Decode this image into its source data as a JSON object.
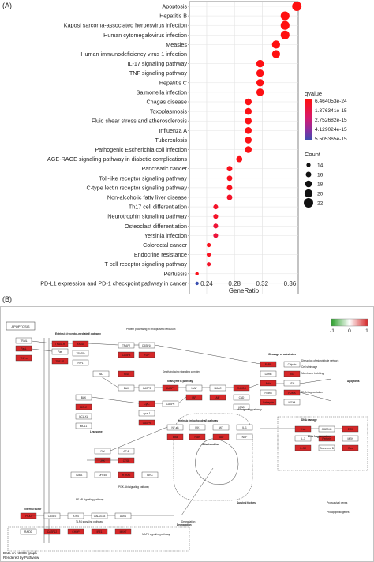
{
  "panel_a_label": "(A)",
  "panel_b_label": "(B)",
  "chart_data": {
    "type": "scatter",
    "subtype": "dot-plot",
    "xlabel": "GeneRatio",
    "ylabel": "",
    "xlim": [
      0.215,
      0.372
    ],
    "x_ticks": [
      0.24,
      0.28,
      0.32,
      0.36
    ],
    "x_tick_labels": [
      "0.24",
      "0.28",
      "0.32",
      "0.36"
    ],
    "grid": true,
    "legend_position": "right",
    "categories": [
      "Apoptosis",
      "Hepatitis B",
      "Kaposi sarcoma-associated herpesvirus infection",
      "Human cytomegalovirus infection",
      "Measles",
      "Human immunodeficiency virus 1 infection",
      "IL-17 signaling pathway",
      "TNF signaling pathway",
      "Hepatitis C",
      "Salmonella infection",
      "Chagas disease",
      "Toxoplasmosis",
      "Fluid shear stress and atherosclerosis",
      "Influenza A",
      "Tuberculosis",
      "Pathogenic Escherichia coli infection",
      "AGE-RAGE signaling pathway in diabetic complications",
      "Pancreatic cancer",
      "Toll-like receptor signaling pathway",
      "C-type lectin receptor signaling pathway",
      "Non-alcoholic fatty liver disease",
      "Th17 cell differentiation",
      "Neurotrophin signaling pathway",
      "Osteoclast differentiation",
      "Yersinia infection",
      "Colorectal cancer",
      "Endocrine resistance",
      "T cell receptor signaling pathway",
      "Pertussis",
      "PD-L1 expression and PD-1 checkpoint pathway in cancer"
    ],
    "gene_ratio": [
      0.37,
      0.353,
      0.353,
      0.353,
      0.34,
      0.34,
      0.317,
      0.317,
      0.317,
      0.317,
      0.3,
      0.3,
      0.3,
      0.3,
      0.3,
      0.3,
      0.287,
      0.273,
      0.273,
      0.273,
      0.273,
      0.253,
      0.253,
      0.253,
      0.253,
      0.243,
      0.243,
      0.243,
      0.226,
      0.226
    ],
    "count": [
      22,
      21,
      21,
      21,
      20,
      20,
      19,
      19,
      19,
      19,
      18,
      18,
      18,
      18,
      18,
      18,
      17,
      16,
      16,
      16,
      16,
      15,
      15,
      15,
      15,
      14,
      14,
      14,
      13,
      13
    ],
    "color_class": [
      0.0,
      0.0,
      0.0,
      0.0,
      0.0,
      0.0,
      0.02,
      0.02,
      0.02,
      0.02,
      0.03,
      0.03,
      0.03,
      0.03,
      0.03,
      0.03,
      0.04,
      0.06,
      0.06,
      0.06,
      0.12,
      0.12,
      0.12,
      0.18,
      0.2,
      0.06,
      0.08,
      0.12,
      0.05,
      1.0
    ],
    "qvalue_legend": {
      "title": "qvalue",
      "labels": [
        "6.464053e-24",
        "1.376341e-15",
        "2.752682e-15",
        "4.129024e-15",
        "5.505365e-15"
      ],
      "color_low": "#e8112e",
      "color_high": "#3a4fb0"
    },
    "count_legend": {
      "title": "Count",
      "labels": [
        "14",
        "16",
        "18",
        "20",
        "22"
      ],
      "values": [
        14,
        16,
        18,
        20,
        22
      ]
    }
  },
  "kegg": {
    "title_box": "APOPTOSIS",
    "color_scale_labels": [
      "-1",
      "0",
      "1"
    ],
    "color_scale_colors": [
      "#2ca02c",
      "#ffffff",
      "#d62728"
    ],
    "footer_line1": "Data on KEGG graph",
    "footer_line2": "Rendered by Pathview",
    "labels": {
      "extrinsic": "Extrinsic (receptor-mediated) pathway",
      "intrinsic": "Intrinsic (mitochondrial) pathway",
      "granzyme": "Granzyme B pathway",
      "degradation": "Degradation",
      "apoptosis": "Apoptosis",
      "dna_damage": "DNA damage",
      "survival_factors": "Survival factors",
      "external_factor": "External factor",
      "mitochondrion": "Mitochondrion",
      "lysosome": "Lysosome",
      "cleavage": "Cleavage of substrates",
      "dna_fragmentation": "DNA fragmentation"
    },
    "gene_labels": [
      "TRAIL",
      "FasL",
      "TNF-α",
      "TRAIL-R",
      "Fas",
      "TNF-R1",
      "FADD",
      "TRADD",
      "RIP1",
      "TRAF2",
      "CASP8",
      "CASP10",
      "FLIP",
      "BID",
      "tBID",
      "BAX",
      "BAK",
      "BCL2",
      "BCL-XL",
      "MCL1",
      "CytC",
      "Apaf-1",
      "CASP9",
      "CASP3",
      "CASP7",
      "CASP6",
      "XIAP",
      "IAP",
      "SMAC",
      "AIF",
      "ENDOG",
      "CAD",
      "ICAD",
      "PARP",
      "Lamin",
      "Actin",
      "Fodrin",
      "Cathepsin",
      "Calpain",
      "p53",
      "ATM",
      "PUMA",
      "NOXA",
      "NF-κB",
      "IκBα",
      "IKK",
      "PI3K",
      "AKT",
      "BAD",
      "IL-1",
      "NGF",
      "TrkA",
      "IL-3",
      "IL-3R",
      "GADD45",
      "Perforin",
      "Granzyme B",
      "ERK",
      "MEK",
      "Ras",
      "Raf",
      "JNK",
      "AP-1",
      "CTSB",
      "TUBA",
      "DFF45",
      "HTRA2",
      "BIRC",
      "PIDD",
      "RAIDD",
      "CASP2",
      "CASP12",
      "ATF4",
      "CHOP",
      "GADD153",
      "IRE1",
      "ASK1",
      "MKK7"
    ],
    "side_text": [
      "Protein processing in endoplasmic reticulum",
      "Death-inducing signaling complex",
      "Disruption of microtubule network",
      "Cell shrinkage",
      "Membrane blebbing",
      "DNA fragmentation",
      "Pro-survival genes",
      "Pro-apoptotic genes",
      "Degradation",
      "TLR4 signaling pathway",
      "NF-κB signaling pathway",
      "MAPK signaling pathway",
      "PI3K-Akt signaling pathway",
      "p53 signaling pathway"
    ]
  }
}
